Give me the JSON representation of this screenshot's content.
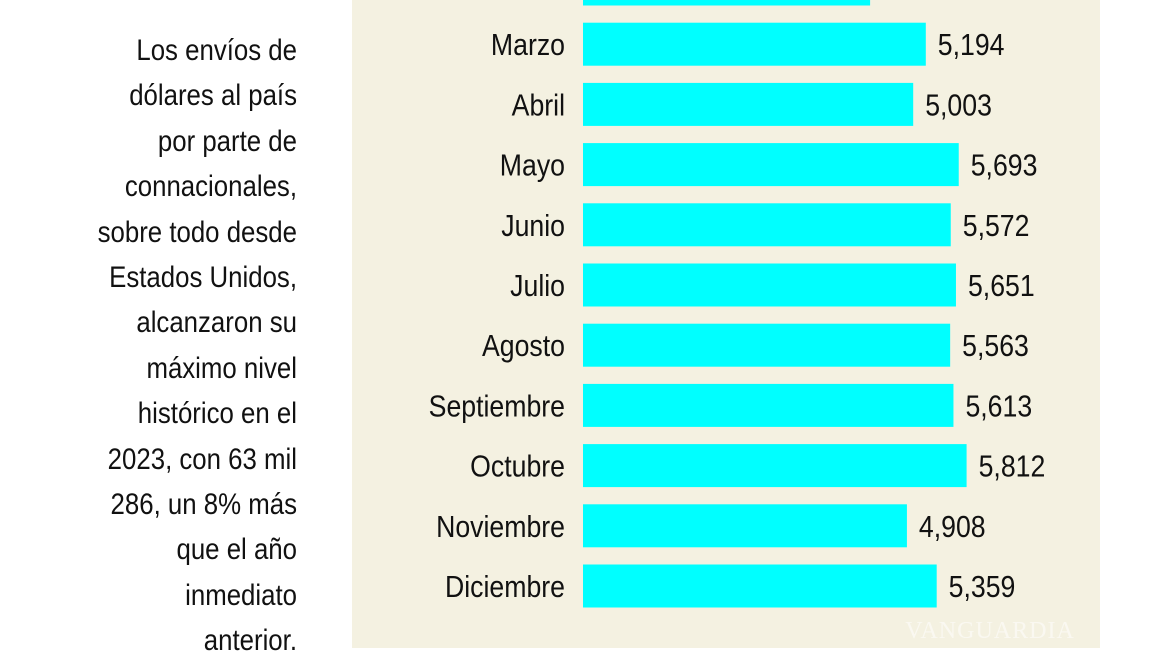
{
  "text_block": [
    "Los envíos de",
    "dólares al país",
    "por parte de",
    "connacionales,",
    "sobre todo desde",
    "Estados Unidos,",
    "alcanzaron su",
    "máximo nivel",
    "histórico en el",
    "2023, con 63 mil",
    "286, un 8% más",
    "que el año",
    "inmediato",
    "anterior."
  ],
  "watermark": "VANGUARDIA",
  "chart_data": {
    "type": "bar",
    "orientation": "horizontal",
    "bar_color": "#00ffff",
    "background_color": "#f4f1e1",
    "categories": [
      "",
      "Marzo",
      "Abril",
      "Mayo",
      "Junio",
      "Julio",
      "Agosto",
      "Septiembre",
      "Octubre",
      "Noviembre",
      "Diciembre"
    ],
    "values": [
      4350,
      5194,
      5003,
      5693,
      5572,
      5651,
      5563,
      5613,
      5812,
      4908,
      5359
    ],
    "value_labels": [
      "",
      "5,194",
      "5,003",
      "5,693",
      "5,572",
      "5,651",
      "5,563",
      "5,613",
      "5,812",
      "4,908",
      "5,359"
    ],
    "grid": false
  }
}
